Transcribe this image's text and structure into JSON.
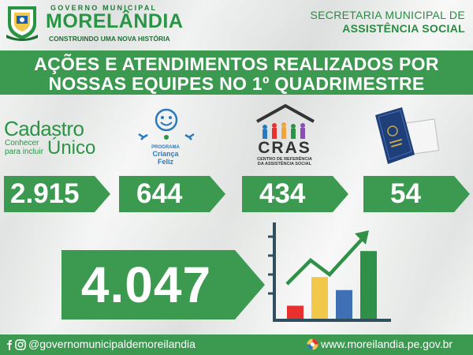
{
  "header": {
    "government_label": "GOVERNO MUNICIPAL",
    "city_name": "MORELÂNDIA",
    "slogan": "CONSTRUINDO UMA NOVA HISTÓRIA",
    "secretariat_line1": "SECRETARIA MUNICIPAL DE",
    "secretariat_line2": "ASSISTÊNCIA SOCIAL"
  },
  "title": {
    "line1": "AÇÕES E ATENDIMENTOS REALIZADOS POR",
    "line2": "NOSSAS EQUIPES NO 1º QUADRIMESTRE"
  },
  "programs": {
    "cadastro": {
      "name": "Cadastro",
      "tagline_1": "Conhecer",
      "tagline_2": "para incluir",
      "name_2": "Único"
    },
    "crianca_feliz": {
      "label_1": "PROGRAMA",
      "label_2": "Criança",
      "label_3": "Feliz"
    },
    "cras": {
      "name": "CRAS",
      "subtitle_1": "CENTRO DE REFERÊNCIA",
      "subtitle_2": "DA ASSISTÊNCIA SOCIAL"
    }
  },
  "stats": [
    {
      "program": "Cadastro Único",
      "value": "2.915"
    },
    {
      "program": "Criança Feliz",
      "value": "644"
    },
    {
      "program": "CRAS",
      "value": "434"
    },
    {
      "program": "Carteira de Trabalho",
      "value": "54"
    }
  ],
  "total": "4.047",
  "growth_chart": {
    "bars": [
      {
        "color": "#e8312f",
        "level": 0.15
      },
      {
        "color": "#f2c84b",
        "level": 0.48
      },
      {
        "color": "#3f6fb5",
        "level": 0.33
      },
      {
        "color": "#2f9148",
        "level": 0.78
      }
    ],
    "arrow_color": "#2f9148"
  },
  "footer": {
    "social_handle": "@governomunicipaldemoreilandia",
    "website": "www.moreilandia.pe.gov.br"
  },
  "colors": {
    "brand_green": "#3c9a50",
    "text_green": "#2a9445",
    "background": "#eef0ee"
  }
}
